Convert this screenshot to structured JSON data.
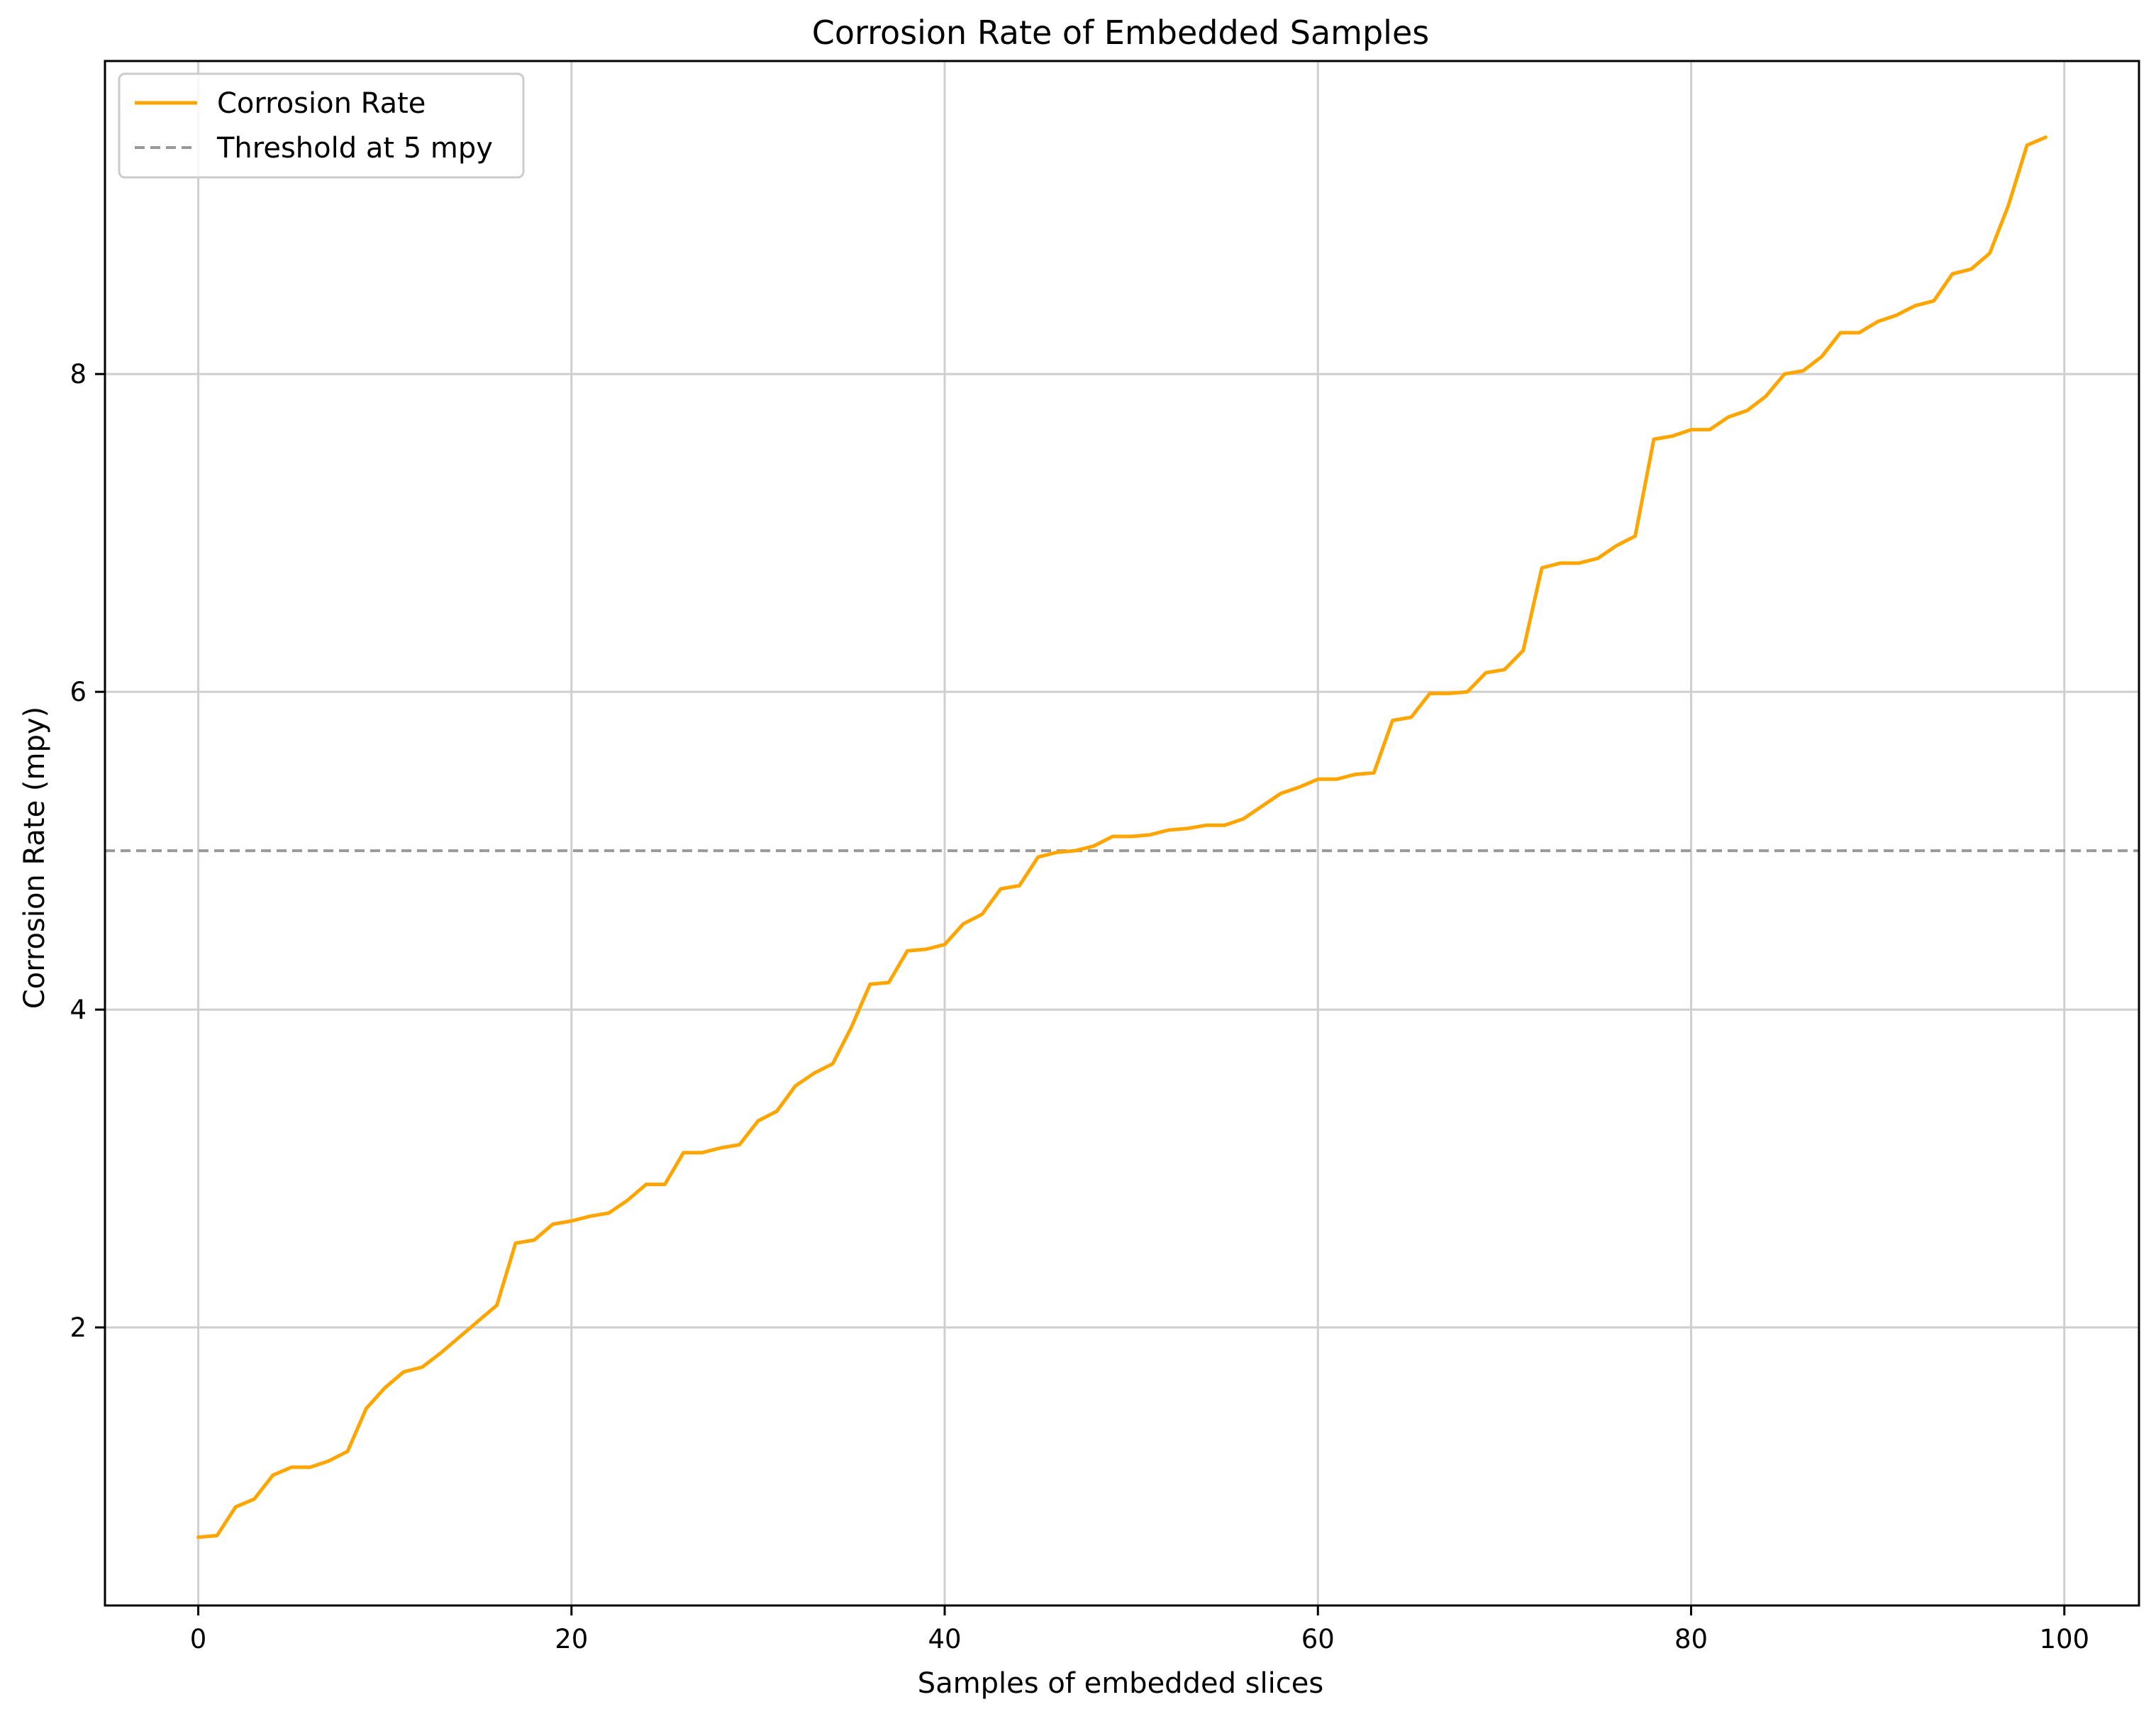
{
  "chart_data": {
    "type": "line",
    "title": "Corrosion Rate of Embedded Samples",
    "xlabel": "Samples of embedded slices",
    "ylabel": "Corrosion Rate (mpy)",
    "xlim": [
      -5,
      104
    ],
    "ylim": [
      0.25,
      9.97
    ],
    "x_ticks": [
      0,
      20,
      40,
      60,
      80,
      100
    ],
    "y_ticks": [
      2,
      4,
      6,
      8
    ],
    "grid": true,
    "legend": "top-left",
    "series": [
      {
        "name": "Corrosion Rate",
        "color": "#FFA500",
        "style": "solid",
        "x": [
          0,
          1,
          2,
          3,
          4,
          5,
          6,
          7,
          8,
          9,
          10,
          11,
          12,
          13,
          14,
          15,
          16,
          17,
          18,
          19,
          20,
          21,
          22,
          23,
          24,
          25,
          26,
          27,
          28,
          29,
          30,
          31,
          32,
          33,
          34,
          35,
          36,
          37,
          38,
          39,
          40,
          41,
          42,
          43,
          44,
          45,
          46,
          47,
          48,
          49,
          50,
          51,
          52,
          53,
          54,
          55,
          56,
          57,
          58,
          59,
          60,
          61,
          62,
          63,
          64,
          65,
          66,
          67,
          68,
          69,
          70,
          71,
          72,
          73,
          74,
          75,
          76,
          77,
          78,
          79,
          80,
          81,
          82,
          83,
          84,
          85,
          86,
          87,
          88,
          89,
          90,
          91,
          92,
          93,
          94,
          95,
          96,
          97,
          98,
          99
        ],
        "y": [
          0.68,
          0.69,
          0.87,
          0.92,
          1.07,
          1.12,
          1.12,
          1.16,
          1.22,
          1.49,
          1.62,
          1.72,
          1.75,
          1.84,
          1.94,
          2.04,
          2.14,
          2.53,
          2.55,
          2.65,
          2.67,
          2.7,
          2.72,
          2.8,
          2.9,
          2.9,
          3.1,
          3.1,
          3.13,
          3.15,
          3.3,
          3.36,
          3.52,
          3.6,
          3.66,
          3.89,
          4.16,
          4.17,
          4.37,
          4.38,
          4.41,
          4.54,
          4.6,
          4.76,
          4.78,
          4.96,
          4.99,
          5.0,
          5.03,
          5.09,
          5.09,
          5.1,
          5.13,
          5.14,
          5.16,
          5.16,
          5.2,
          5.28,
          5.36,
          5.4,
          5.45,
          5.45,
          5.48,
          5.49,
          5.82,
          5.84,
          5.99,
          5.99,
          6.0,
          6.12,
          6.14,
          6.26,
          6.78,
          6.81,
          6.81,
          6.84,
          6.92,
          6.98,
          7.59,
          7.61,
          7.65,
          7.65,
          7.73,
          7.77,
          7.86,
          8.0,
          8.02,
          8.11,
          8.26,
          8.26,
          8.33,
          8.37,
          8.43,
          8.46,
          8.63,
          8.66,
          8.76,
          9.06,
          9.44,
          9.49
        ]
      },
      {
        "name": "Threshold at 5 mpy",
        "color": "#999999",
        "style": "dashed",
        "y_constant": 5
      }
    ]
  }
}
